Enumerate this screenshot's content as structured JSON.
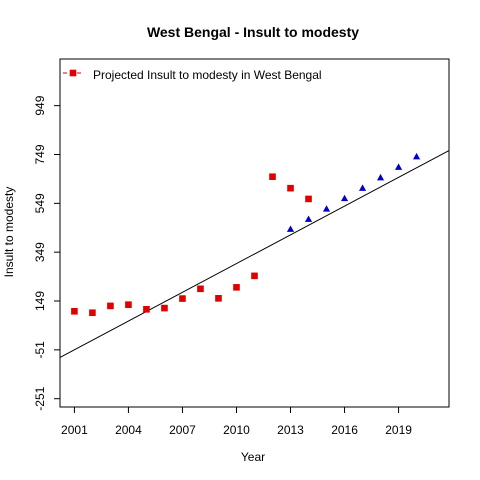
{
  "chart_data": {
    "type": "scatter",
    "title": "West Bengal  -  Insult to modesty",
    "xlabel": "Year",
    "ylabel": "Insult to modesty",
    "xlim": [
      2000.2,
      2021.8
    ],
    "ylim": [
      -285,
      1140
    ],
    "x_ticks": [
      2001,
      2004,
      2007,
      2010,
      2013,
      2016,
      2019
    ],
    "y_ticks": [
      -251,
      -51,
      149,
      349,
      549,
      749,
      949
    ],
    "legend": {
      "placement": "top-left",
      "label": "Projected  Insult to modesty  in  West Bengal"
    },
    "series": [
      {
        "name": "Projected  Insult to modesty  in  West Bengal",
        "marker": "square",
        "color": "#E00000",
        "x": [
          2001,
          2002,
          2003,
          2004,
          2005,
          2006,
          2007,
          2008,
          2009,
          2010,
          2011,
          2012,
          2013,
          2014
        ],
        "y": [
          107,
          101,
          129,
          134,
          115,
          120,
          159,
          199,
          160,
          205,
          252,
          658,
          611,
          567
        ]
      },
      {
        "marker": "triangle",
        "color": "#0000CC",
        "x": [
          2013,
          2014,
          2015,
          2016,
          2017,
          2018,
          2019,
          2020
        ],
        "y": [
          442,
          483,
          525,
          568,
          610,
          653,
          696,
          739
        ]
      }
    ],
    "trend_line": {
      "color": "#000000",
      "points": [
        [
          2000.2,
          -82
        ],
        [
          2021.8,
          765
        ]
      ]
    }
  }
}
